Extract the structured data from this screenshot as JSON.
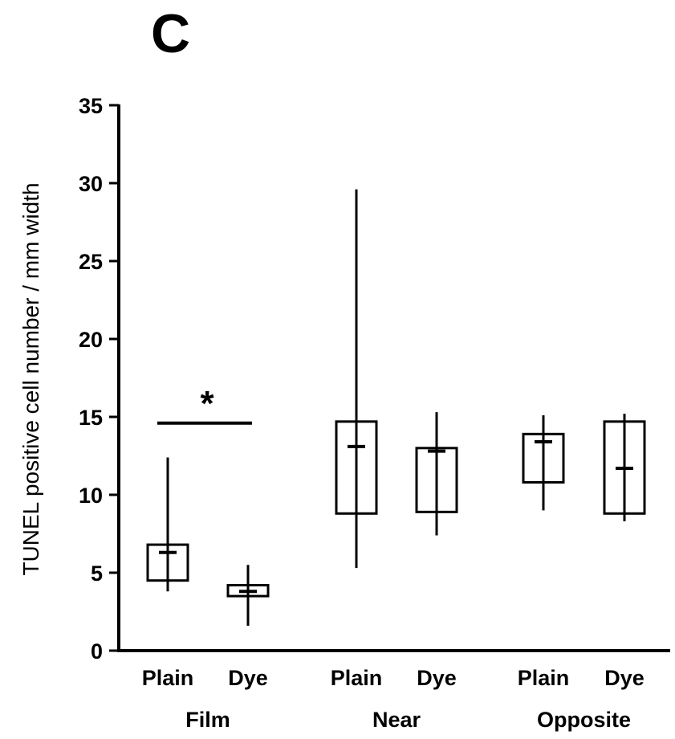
{
  "panel_label": "C",
  "chart_data": {
    "type": "box",
    "title": "",
    "ylabel": "TUNEL positive cell number / mm width",
    "xlabel": "",
    "ylim": [
      0,
      35
    ],
    "yticks": [
      0,
      5,
      10,
      15,
      20,
      25,
      30,
      35
    ],
    "grid": false,
    "groups": [
      {
        "name": "Film",
        "boxes": [
          {
            "label": "Plain",
            "whisker_low": 3.8,
            "q1": 4.5,
            "median": 6.3,
            "q3": 6.8,
            "whisker_high": 12.4
          },
          {
            "label": "Dye",
            "whisker_low": 1.6,
            "q1": 3.5,
            "median": 3.8,
            "q3": 4.2,
            "whisker_high": 5.5
          }
        ]
      },
      {
        "name": "Near",
        "boxes": [
          {
            "label": "Plain",
            "whisker_low": 5.3,
            "q1": 8.8,
            "median": 13.1,
            "q3": 14.7,
            "whisker_high": 29.6
          },
          {
            "label": "Dye",
            "whisker_low": 7.4,
            "q1": 8.9,
            "median": 12.8,
            "q3": 13.0,
            "whisker_high": 15.3
          }
        ]
      },
      {
        "name": "Opposite",
        "boxes": [
          {
            "label": "Plain",
            "whisker_low": 9.0,
            "q1": 10.8,
            "median": 13.4,
            "q3": 13.9,
            "whisker_high": 15.1
          },
          {
            "label": "Dye",
            "whisker_low": 8.3,
            "q1": 8.8,
            "median": 11.7,
            "q3": 14.7,
            "whisker_high": 15.2
          }
        ]
      }
    ],
    "annotations": [
      {
        "text": "*",
        "type": "significance",
        "between": [
          "Film Plain",
          "Film Dye"
        ],
        "y": 14.6
      }
    ]
  }
}
